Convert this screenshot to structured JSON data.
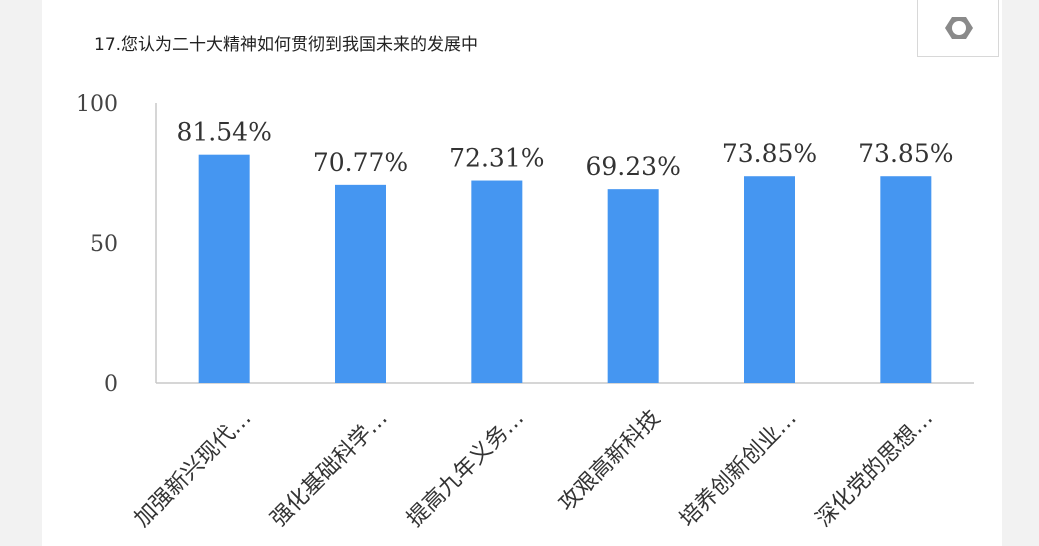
{
  "toolbar": {
    "settings_icon": "gear-icon"
  },
  "chart_data": {
    "type": "bar",
    "title": "17.您认为二十大精神如何贯彻到我国未来的发展中",
    "categories": [
      "加强新兴现代…",
      "强化基础科学…",
      "提高九年义务…",
      "攻艰高新科技",
      "培养创新创业…",
      "深化党的思想…"
    ],
    "values": [
      81.54,
      70.77,
      72.31,
      69.23,
      73.85,
      73.85
    ],
    "data_labels": [
      "81.54%",
      "70.77%",
      "72.31%",
      "69.23%",
      "73.85%",
      "73.85%"
    ],
    "y_ticks": [
      "0",
      "50",
      "100"
    ],
    "ylim": [
      0,
      100
    ],
    "xlabel": "",
    "ylabel": "",
    "bar_color": "#4596f1",
    "grid": false,
    "legend": "none"
  }
}
